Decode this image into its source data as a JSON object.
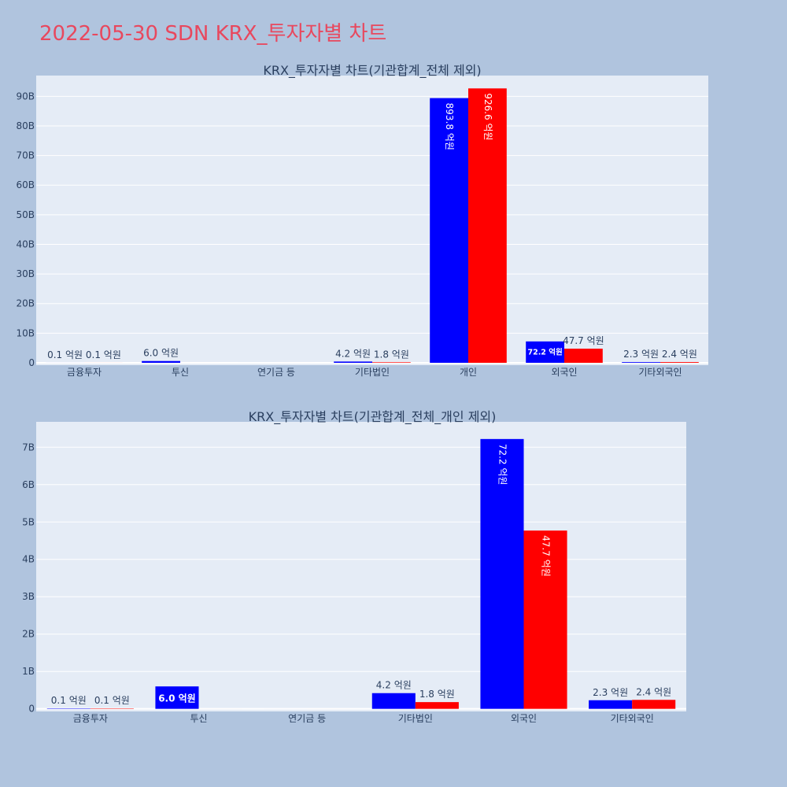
{
  "page_title": "2022-05-30 SDN KRX_투자자별 차트",
  "colors": {
    "background": "#b0c4de",
    "plot_bg": "#e5ecf6",
    "grid": "#ffffff",
    "title": "#e8485e",
    "text": "#2a3f5f",
    "series_a": "#0000ff",
    "series_b": "#ff0000"
  },
  "chart_data": [
    {
      "type": "bar",
      "title": "KRX_투자자별 차트(기관합계_전체 제외)",
      "categories": [
        "금융투자",
        "투신",
        "연기금 등",
        "기타법인",
        "개인",
        "외국인",
        "기타외국인"
      ],
      "series": [
        {
          "color": "#0000ff",
          "values": [
            0.01,
            0.6,
            0,
            0.42,
            89.38,
            7.22,
            0.23
          ],
          "labels": [
            "0.1 억원",
            "6.0 억원",
            "",
            "4.2 억원",
            "893.8 억원",
            "72.2 억원",
            "2.3 억원"
          ]
        },
        {
          "color": "#ff0000",
          "values": [
            0.01,
            0,
            0,
            0.18,
            92.66,
            4.77,
            0.24
          ],
          "labels": [
            "0.1 억원",
            "",
            "",
            "1.8 억원",
            "926.6 억원",
            "47.7 억원",
            "2.4 억원"
          ]
        }
      ],
      "yticks": [
        0,
        10,
        20,
        30,
        40,
        50,
        60,
        70,
        80,
        90
      ],
      "ytick_labels": [
        "0",
        "10B",
        "20B",
        "30B",
        "40B",
        "50B",
        "60B",
        "70B",
        "80B",
        "90B"
      ],
      "ylim": [
        -0.8,
        97
      ],
      "grid": true
    },
    {
      "type": "bar",
      "title": "KRX_투자자별 차트(기관합계_전체_개인 제외)",
      "categories": [
        "금융투자",
        "투신",
        "연기금 등",
        "기타법인",
        "외국인",
        "기타외국인"
      ],
      "series": [
        {
          "color": "#0000ff",
          "values": [
            0.01,
            0.6,
            0,
            0.42,
            7.22,
            0.23
          ],
          "labels": [
            "0.1 억원",
            "6.0 억원",
            "",
            "4.2 억원",
            "72.2 억원",
            "2.3 억원"
          ]
        },
        {
          "color": "#ff0000",
          "values": [
            0.01,
            0,
            0,
            0.18,
            4.77,
            0.24
          ],
          "labels": [
            "0.1 억원",
            "",
            "",
            "1.8 억원",
            "47.7 억원",
            "2.4 억원"
          ]
        }
      ],
      "yticks": [
        0,
        1,
        2,
        3,
        4,
        5,
        6,
        7
      ],
      "ytick_labels": [
        "0",
        "1B",
        "2B",
        "3B",
        "4B",
        "5B",
        "6B",
        "7B"
      ],
      "ylim": [
        -0.07,
        7.68
      ],
      "grid": true
    }
  ]
}
